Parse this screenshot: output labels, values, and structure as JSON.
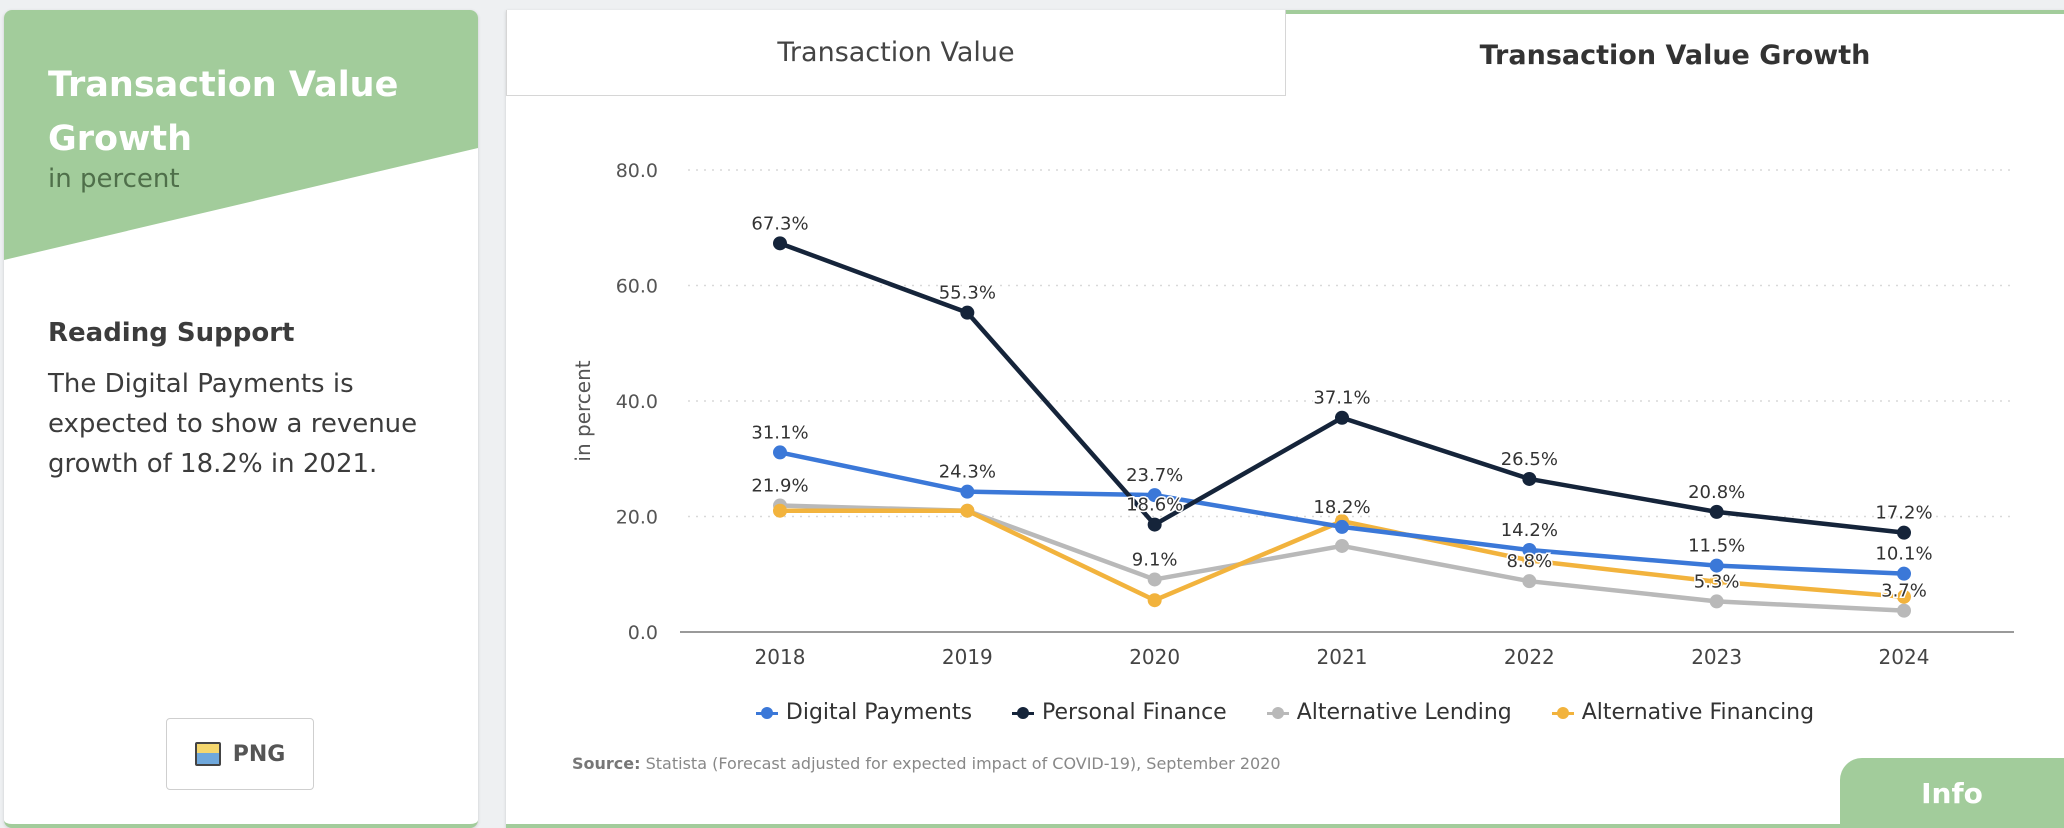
{
  "sidebar": {
    "title": "Transaction Value Growth",
    "subtitle": "in percent",
    "reading_title": "Reading Support",
    "reading_text": "The Digital Payments is expected to show a revenue growth of 18.2% in 2021.",
    "png_label": "PNG"
  },
  "tabs": [
    {
      "label": "Transaction Value"
    },
    {
      "label": "Transaction Value Growth"
    }
  ],
  "source": {
    "prefix": "Source:",
    "text": "Statista (Forecast adjusted for expected impact of COVID-19), September 2020"
  },
  "info_label": "Info",
  "chart_data": {
    "type": "line",
    "x": [
      "2018",
      "2019",
      "2020",
      "2021",
      "2022",
      "2023",
      "2024"
    ],
    "ylabel": "in percent",
    "ylim": [
      0,
      80
    ],
    "yticks": [
      "0.0",
      "20.0",
      "40.0",
      "60.0",
      "80.0"
    ],
    "grid": true,
    "legend_position": "bottom",
    "series": [
      {
        "name": "Digital Payments",
        "color": "#3b78d8",
        "values": [
          31.1,
          24.3,
          23.7,
          18.2,
          14.2,
          11.5,
          10.1
        ],
        "labels": [
          "31.1%",
          "24.3%",
          "23.7%",
          "18.2%",
          "14.2%",
          "11.5%",
          "10.1%"
        ]
      },
      {
        "name": "Personal Finance",
        "color": "#15243a",
        "values": [
          67.3,
          55.3,
          18.6,
          37.1,
          26.5,
          20.8,
          17.2
        ],
        "labels": [
          "67.3%",
          "55.3%",
          "18.6%",
          "37.1%",
          "26.5%",
          "20.8%",
          "17.2%"
        ]
      },
      {
        "name": "Alternative Lending",
        "color": "#b9b9b9",
        "values": [
          21.9,
          21.0,
          9.1,
          14.9,
          8.8,
          5.3,
          3.7
        ],
        "labels": [
          "21.9%",
          null,
          "9.1%",
          null,
          "8.8%",
          "5.3%",
          "3.7%"
        ]
      },
      {
        "name": "Alternative Financing",
        "color": "#f2b33d",
        "values": [
          21.0,
          21.0,
          5.5,
          19.2,
          12.4,
          8.7,
          6.1
        ],
        "labels": [
          null,
          null,
          null,
          null,
          null,
          null,
          null
        ]
      }
    ]
  }
}
